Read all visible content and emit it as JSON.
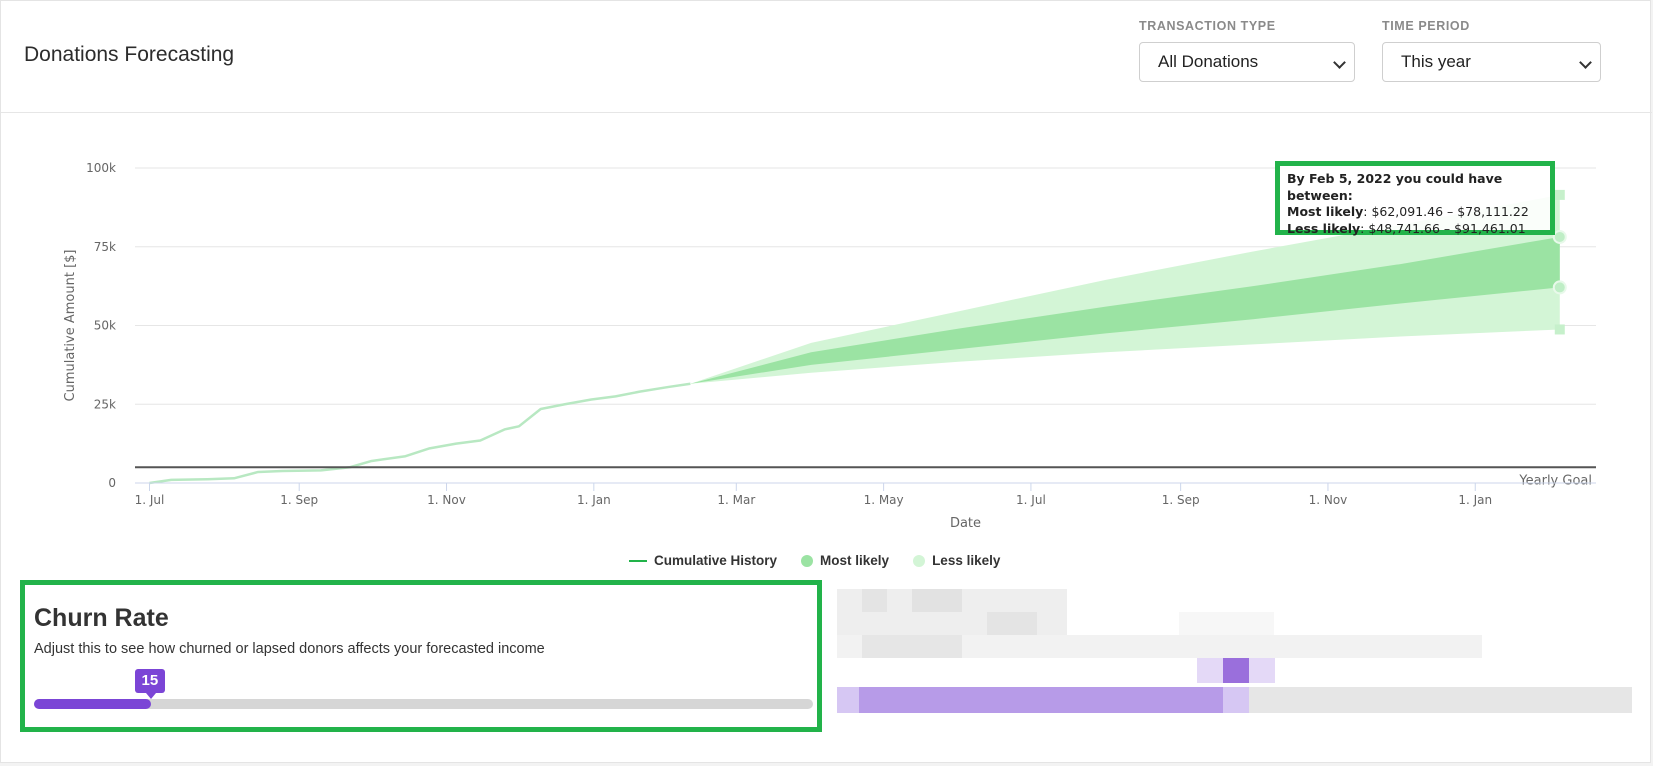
{
  "header": {
    "title": "Donations Forecasting",
    "transaction_type": {
      "label": "TRANSACTION TYPE",
      "value": "All Donations"
    },
    "time_period": {
      "label": "TIME PERIOD",
      "value": "This year"
    }
  },
  "colors": {
    "history": "#b8e8c2",
    "most_likely": "#9be3a3",
    "less_likely": "#d3f5d6",
    "goal_line": "#555555",
    "highlight_border": "#22b34a",
    "slider": "#7b45d6"
  },
  "chart_data": {
    "type": "area",
    "xlabel": "Date",
    "ylabel": "Cumulative Amount [$]",
    "ylim": [
      0,
      100000
    ],
    "y_ticks": [
      "0",
      "25k",
      "50k",
      "75k",
      "100k"
    ],
    "x_ticks": [
      "1. Jul",
      "1. Sep",
      "1. Nov",
      "1. Jan",
      "1. Mar",
      "1. May",
      "1. Jul",
      "1. Sep",
      "1. Nov",
      "1. Jan"
    ],
    "x_tick_dates": [
      "2020-07-01",
      "2020-09-01",
      "2020-11-01",
      "2021-01-01",
      "2021-03-01",
      "2021-05-01",
      "2021-07-01",
      "2021-09-01",
      "2021-11-01",
      "2022-01-01"
    ],
    "xlim": [
      "2020-06-25",
      "2022-02-20"
    ],
    "grid": true,
    "yearly_goal": {
      "label": "Yearly Goal",
      "value": 5000
    },
    "series": [
      {
        "name": "Cumulative History",
        "x": [
          "2020-07-01",
          "2020-07-10",
          "2020-07-25",
          "2020-08-05",
          "2020-08-15",
          "2020-08-25",
          "2020-09-10",
          "2020-09-22",
          "2020-10-01",
          "2020-10-15",
          "2020-10-25",
          "2020-11-05",
          "2020-11-15",
          "2020-11-25",
          "2020-12-01",
          "2020-12-10",
          "2020-12-20",
          "2020-12-31",
          "2021-01-10",
          "2021-01-20",
          "2021-02-01",
          "2021-02-10"
        ],
        "y": [
          0,
          1000,
          1200,
          1500,
          3500,
          3800,
          4000,
          5000,
          7000,
          8500,
          11000,
          12500,
          13500,
          17000,
          18000,
          23500,
          25000,
          26500,
          27500,
          29000,
          30500,
          31500
        ]
      },
      {
        "name": "Most likely",
        "x": [
          "2021-02-10",
          "2021-04-01",
          "2021-06-01",
          "2021-08-01",
          "2021-10-01",
          "2021-12-01",
          "2022-02-05"
        ],
        "low": [
          31500,
          37500,
          42500,
          47500,
          52000,
          57000,
          62091.46
        ],
        "high": [
          31500,
          41500,
          49000,
          56000,
          62500,
          69500,
          78111.22
        ]
      },
      {
        "name": "Less likely",
        "x": [
          "2021-02-10",
          "2021-04-01",
          "2021-06-01",
          "2021-08-01",
          "2021-10-01",
          "2021-12-01",
          "2022-02-05"
        ],
        "low": [
          31500,
          35000,
          38500,
          41500,
          44000,
          46500,
          48741.66
        ],
        "high": [
          31500,
          44500,
          54500,
          64500,
          73500,
          82000,
          91461.01
        ]
      }
    ],
    "legend": [
      "Cumulative History",
      "Most likely",
      "Less likely"
    ],
    "legend_position": "bottom-center",
    "tooltip": {
      "heading": "By Feb 5, 2022 you could have between:",
      "most_likely_label": "Most likely",
      "most_likely_range": ": $62,091.46 – $78,111.22",
      "less_likely_label": "Less likely",
      "less_likely_range": ": $48,741.66 – $91,461.01"
    }
  },
  "churn": {
    "title": "Churn Rate",
    "description": "Adjust this to see how churned or lapsed donors affects your forecasted income",
    "value": "15",
    "fraction": 0.15
  }
}
